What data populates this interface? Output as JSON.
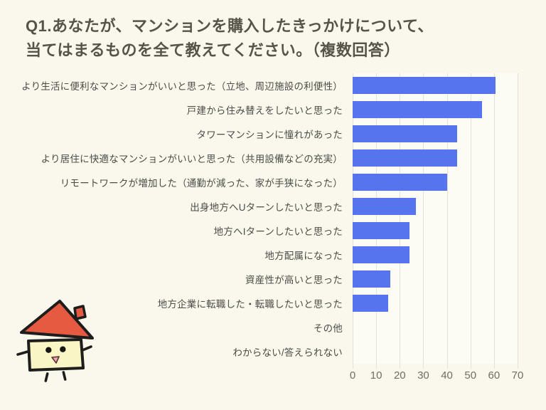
{
  "title": {
    "line1": "Q1.あなたが、マンションを購入したきっかけについて、",
    "line2": "当てはまるものを全て教えてください。（複数回答）"
  },
  "chart_data": {
    "type": "bar",
    "orientation": "horizontal",
    "title": "Q1.あなたが、マンションを購入したきっかけについて、当てはまるものを全て教えてください。（複数回答）",
    "categories": [
      "より生活に便利なマンションがいいと思った（立地、周辺施設の利便性）",
      "戸建から住み替えをしたいと思った",
      "タワーマンションに憧れがあった",
      "より居住に快適なマンションがいいと思った（共用設備などの充実）",
      "リモートワークが増加した（通勤が減った、家が手狭になった）",
      "出身地方へUターンしたいと思った",
      "地方へIターンしたいと思った",
      "地方配属になった",
      "資産性が高いと思った",
      "地方企業に転職した・転職したいと思った",
      "その他",
      "わからない/答えられない"
    ],
    "values": [
      60.5,
      55,
      44.5,
      44.5,
      40,
      27,
      24,
      24,
      16,
      15,
      0,
      0
    ],
    "xlabel": "",
    "ylabel": "",
    "xlim": [
      0,
      70
    ],
    "xticks": [
      0,
      10,
      20,
      30,
      40,
      50,
      60,
      70
    ],
    "grid": true,
    "legend": false
  },
  "colors": {
    "background": "#faf8ec",
    "bar": "#5674ee",
    "gridline": "#e3e2d6",
    "title_text": "#56534a",
    "label_text": "#4c4c47",
    "tick_text": "#6e6d67",
    "mascot_roof": "#e65a41",
    "mascot_body": "#f9f5c4",
    "mascot_mouth": "#efa3b0",
    "mascot_outline": "#1d1d1b"
  },
  "mascot": {
    "name": "house-character"
  }
}
